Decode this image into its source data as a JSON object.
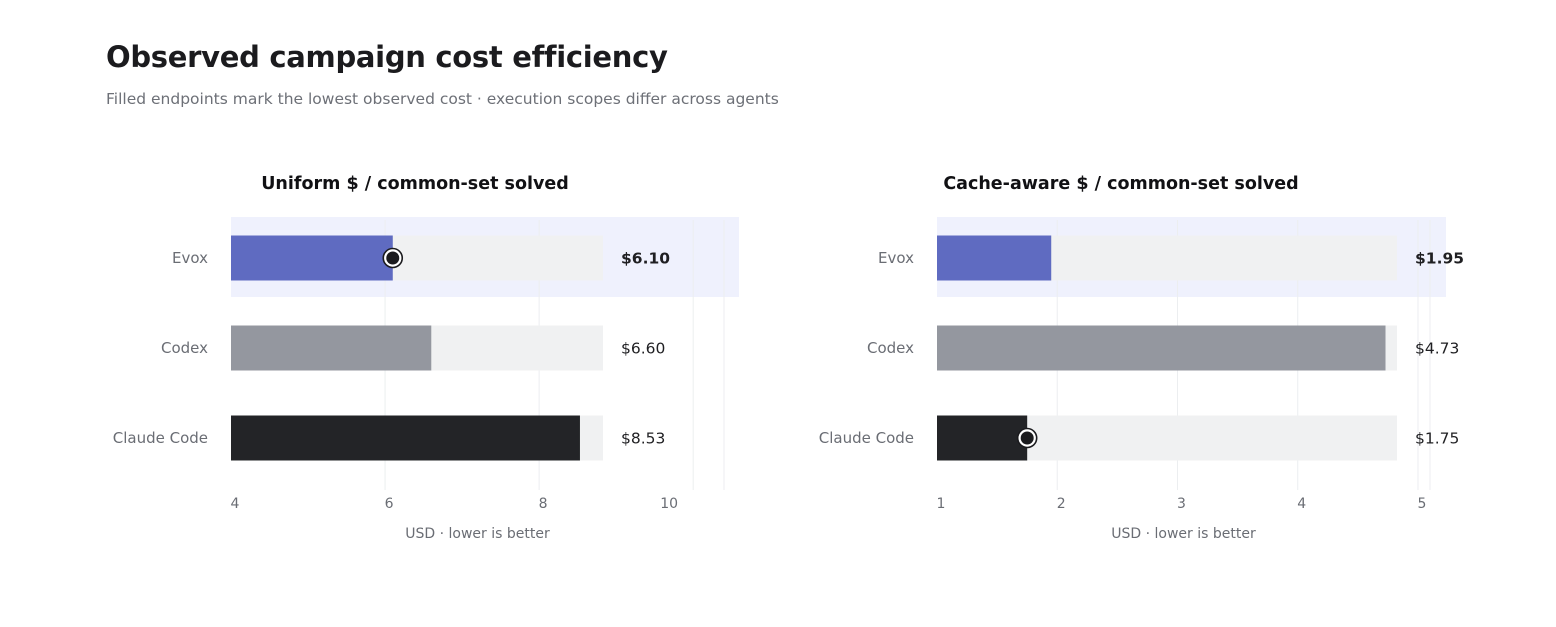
{
  "header": {
    "title": "Observed campaign cost efficiency",
    "subtitle": "Filled endpoints mark the lowest observed cost · execution scopes differ across agents"
  },
  "colors": {
    "highlight_bg": "#eff1fd",
    "track": "#f0f1f2",
    "grid": "#eceef0",
    "highlight_value_text": "#4b55b0"
  },
  "chart_data": [
    {
      "type": "bar",
      "orientation": "horizontal",
      "title": "Uniform $ / common-set solved",
      "xlabel": "USD · lower is better",
      "ylabel": "",
      "xlim": [
        4,
        10.4
      ],
      "track_max": 8.53,
      "xticks": [
        4,
        6,
        8,
        10
      ],
      "xtick_labels": [
        "4",
        "6",
        "8",
        "10"
      ],
      "grid": true,
      "categories": [
        "Evox",
        "Codex",
        "Claude Code"
      ],
      "values": [
        6.1,
        6.6,
        8.53
      ],
      "value_labels": [
        "$6.10",
        "$6.60",
        "$8.53"
      ],
      "bar_colors": [
        "#5f6bc1",
        "#94979f",
        "#232427"
      ],
      "highlight_category": "Evox",
      "lowest_marker": "Evox"
    },
    {
      "type": "bar",
      "orientation": "horizontal",
      "title": "Cache-aware $ / common-set solved",
      "xlabel": "USD · lower is better",
      "ylabel": "",
      "xlim": [
        1,
        5.1
      ],
      "track_max": 4.73,
      "xticks": [
        1,
        2,
        3,
        4,
        5
      ],
      "xtick_labels": [
        "1",
        "2",
        "3",
        "4",
        "5"
      ],
      "grid": true,
      "categories": [
        "Evox",
        "Codex",
        "Claude Code"
      ],
      "values": [
        1.95,
        4.73,
        1.75
      ],
      "value_labels": [
        "$1.95",
        "$4.73",
        "$1.75"
      ],
      "bar_colors": [
        "#5f6bc1",
        "#94979f",
        "#232427"
      ],
      "highlight_category": "Evox",
      "lowest_marker": "Claude Code"
    }
  ]
}
